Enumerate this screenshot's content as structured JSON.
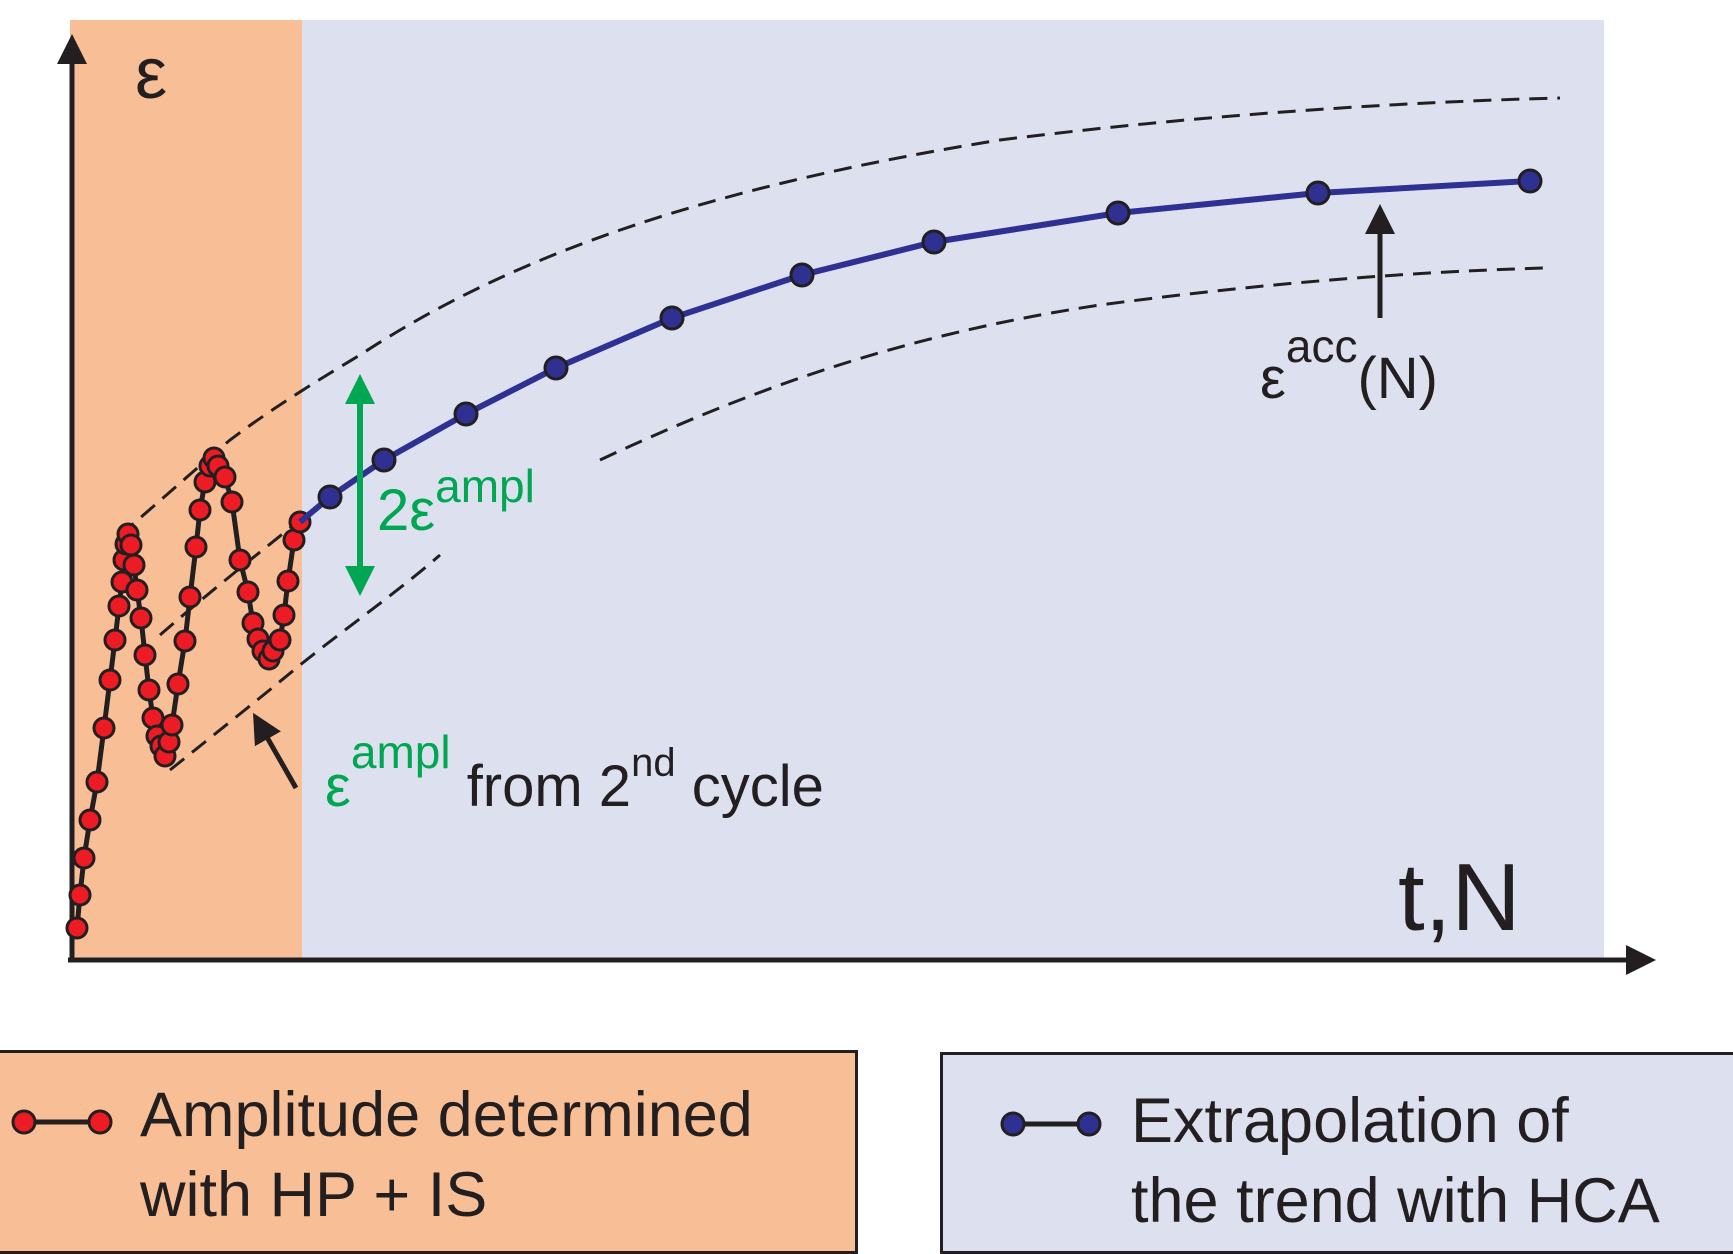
{
  "colors": {
    "hp_region": "#f8bf96",
    "hca_region": "#dde1ef",
    "hp_markers": "#ed1c24",
    "hca_line": "#2e3192",
    "amplitude_annotation": "#00a651",
    "ink": "#231f20"
  },
  "axes": {
    "y_label": "ε",
    "x_label": "t,N"
  },
  "annotations": {
    "double_amplitude": {
      "base": "2ε",
      "sup": "ampl"
    },
    "accumulated_strain": {
      "base": "ε",
      "sup": "acc",
      "suffix": "(N)"
    },
    "amplitude_source": {
      "eps": "ε",
      "eps_sup": "ampl",
      "text_a": " from 2",
      "ord_sup": "nd",
      "text_b": " cycle"
    }
  },
  "legend": {
    "hp": {
      "line1": "Amplitude determined",
      "line2": "with HP + IS",
      "marker": "red-dot-line-icon"
    },
    "hca": {
      "line1": "Extrapolation of",
      "line2": "the trend with HCA",
      "marker": "blue-dot-line-icon"
    }
  }
}
